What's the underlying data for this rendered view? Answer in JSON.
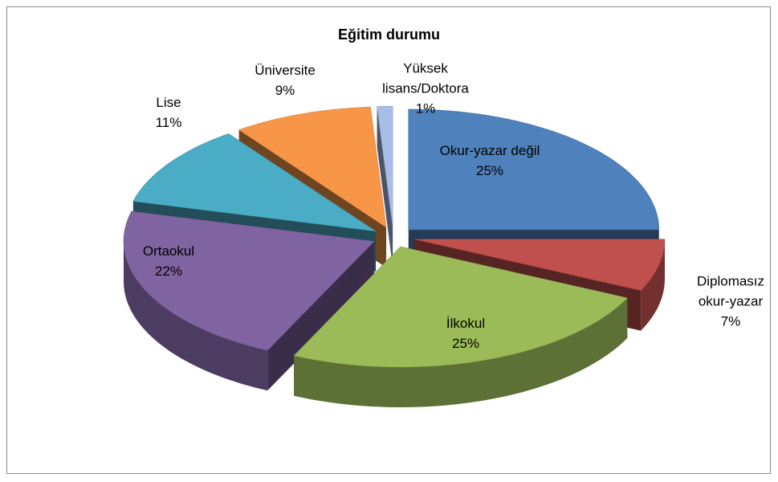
{
  "chart_data": {
    "type": "pie3d",
    "title": "Eğitim durumu",
    "categories": [
      "Okur-yazar değil",
      "Diplomasız okur-yazar",
      "İlkokul",
      "Ortaokul",
      "Lise",
      "Üniversite",
      "Yüksek lisans/Doktora"
    ],
    "values": [
      25,
      7,
      25,
      22,
      11,
      9,
      1
    ],
    "value_labels": [
      "25%",
      "7%",
      "25%",
      "22%",
      "11%",
      "9%",
      "1%"
    ],
    "colors": [
      "#4f81bd",
      "#c0504d",
      "#9bbb59",
      "#8064a2",
      "#4bacc6",
      "#f79646",
      "#a9bde6"
    ]
  }
}
